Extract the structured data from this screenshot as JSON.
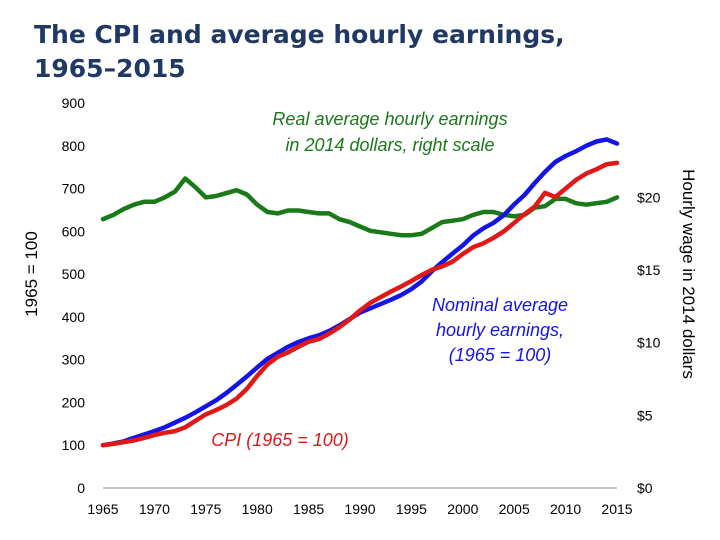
{
  "title": {
    "line1": "The CPI and average hourly earnings,",
    "line2": "1965–2015"
  },
  "chart_data": {
    "type": "line",
    "title": "The CPI and average hourly earnings, 1965–2015",
    "xlabel": "",
    "ylabel": "1965 = 100",
    "y2label": "Hourly wage in 2014 dollars",
    "xlim": [
      1965,
      2015
    ],
    "ylim": [
      0,
      900
    ],
    "y2lim": [
      0,
      26.5
    ],
    "x_ticks": [
      "1965",
      "1970",
      "1975",
      "1980",
      "1985",
      "1990",
      "1995",
      "2000",
      "2005",
      "2010",
      "2015"
    ],
    "y_ticks": [
      "0",
      "100",
      "200",
      "300",
      "400",
      "500",
      "600",
      "700",
      "800",
      "900"
    ],
    "y2_ticks": [
      {
        "value": 0,
        "label": "$0"
      },
      {
        "value": 5,
        "label": "$5"
      },
      {
        "value": 10,
        "label": "$10"
      },
      {
        "value": 15,
        "label": "$15"
      },
      {
        "value": 20,
        "label": "$20"
      }
    ],
    "grid": false,
    "annotations": [
      {
        "text": "Real average hourly earnings",
        "series": "real_wage"
      },
      {
        "text": "in 2014 dollars, right scale",
        "series": "real_wage"
      },
      {
        "text": "Nominal average",
        "series": "nominal_wage"
      },
      {
        "text": "hourly earnings,",
        "series": "nominal_wage"
      },
      {
        "text": "(1965 = 100)",
        "series": "nominal_wage"
      },
      {
        "text": "CPI (1965 = 100)",
        "series": "cpi"
      }
    ],
    "series": [
      {
        "key": "real_wage",
        "axis": "right",
        "color": "#1a7a1a",
        "x": [
          1965,
          1966,
          1967,
          1968,
          1969,
          1970,
          1971,
          1972,
          1973,
          1974,
          1975,
          1976,
          1977,
          1978,
          1979,
          1980,
          1981,
          1982,
          1983,
          1984,
          1985,
          1986,
          1987,
          1988,
          1989,
          1990,
          1991,
          1992,
          1993,
          1994,
          1995,
          1996,
          1997,
          1998,
          1999,
          2000,
          2001,
          2002,
          2003,
          2004,
          2005,
          2006,
          2007,
          2008,
          2009,
          2010,
          2011,
          2012,
          2013,
          2014,
          2015
        ],
        "y": [
          18.5,
          18.8,
          19.2,
          19.5,
          19.7,
          19.7,
          20.0,
          20.4,
          21.3,
          20.7,
          20.0,
          20.1,
          20.3,
          20.5,
          20.2,
          19.5,
          19.0,
          18.9,
          19.1,
          19.1,
          19.0,
          18.9,
          18.9,
          18.5,
          18.3,
          18.0,
          17.7,
          17.6,
          17.5,
          17.4,
          17.4,
          17.5,
          17.9,
          18.3,
          18.4,
          18.5,
          18.8,
          19.0,
          19.0,
          18.8,
          18.7,
          18.8,
          19.3,
          19.4,
          19.9,
          19.9,
          19.6,
          19.5,
          19.6,
          19.7,
          20.0
        ]
      },
      {
        "key": "nominal_wage",
        "axis": "left",
        "color": "#1414e6",
        "x": [
          1965,
          1966,
          1967,
          1968,
          1969,
          1970,
          1971,
          1972,
          1973,
          1974,
          1975,
          1976,
          1977,
          1978,
          1979,
          1980,
          1981,
          1982,
          1983,
          1984,
          1985,
          1986,
          1987,
          1988,
          1989,
          1990,
          1991,
          1992,
          1993,
          1994,
          1995,
          1996,
          1997,
          1998,
          1999,
          2000,
          2001,
          2002,
          2003,
          2004,
          2005,
          2006,
          2007,
          2008,
          2009,
          2010,
          2011,
          2012,
          2013,
          2014,
          2015
        ],
        "y": [
          100,
          104,
          109,
          117,
          125,
          133,
          142,
          153,
          164,
          177,
          191,
          205,
          222,
          241,
          261,
          282,
          302,
          316,
          330,
          341,
          350,
          357,
          367,
          380,
          395,
          410,
          420,
          430,
          440,
          451,
          465,
          483,
          507,
          528,
          548,
          567,
          590,
          607,
          620,
          638,
          663,
          685,
          713,
          739,
          762,
          776,
          787,
          800,
          810,
          815,
          805
        ]
      },
      {
        "key": "cpi",
        "axis": "left",
        "color": "#e01818",
        "x": [
          1965,
          1966,
          1967,
          1968,
          1969,
          1970,
          1971,
          1972,
          1973,
          1974,
          1975,
          1976,
          1977,
          1978,
          1979,
          1980,
          1981,
          1982,
          1983,
          1984,
          1985,
          1986,
          1987,
          1988,
          1989,
          1990,
          1991,
          1992,
          1993,
          1994,
          1995,
          1996,
          1997,
          1998,
          1999,
          2000,
          2001,
          2002,
          2003,
          2004,
          2005,
          2006,
          2007,
          2008,
          2009,
          2010,
          2011,
          2012,
          2013,
          2014,
          2015
        ],
        "y": [
          100,
          103,
          107,
          111,
          117,
          124,
          129,
          133,
          142,
          157,
          172,
          182,
          194,
          209,
          232,
          262,
          289,
          307,
          317,
          330,
          342,
          348,
          361,
          376,
          394,
          415,
          433,
          446,
          459,
          471,
          484,
          498,
          510,
          518,
          529,
          547,
          563,
          572,
          585,
          600,
          620,
          640,
          658,
          690,
          680,
          700,
          720,
          735,
          745,
          757,
          760
        ]
      }
    ]
  }
}
